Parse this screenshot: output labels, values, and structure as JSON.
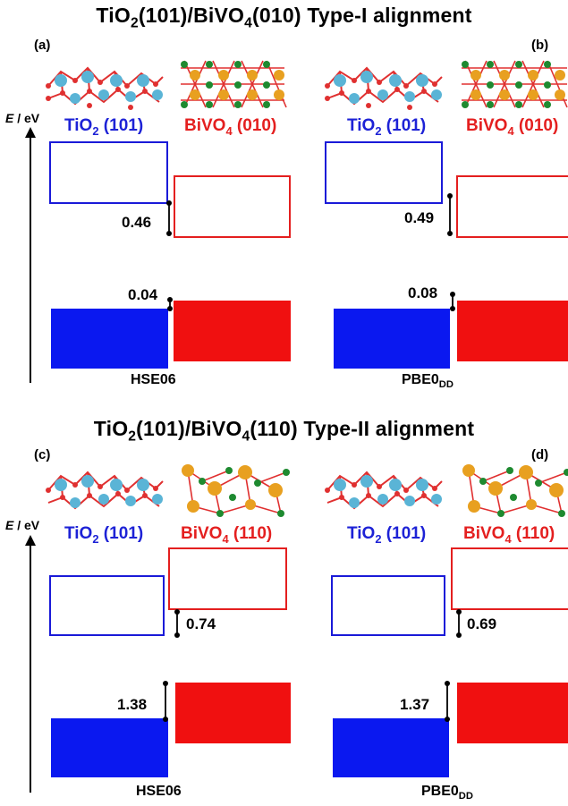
{
  "titles": {
    "top": {
      "prefix": "TiO",
      "sub1": "2",
      "mid": "(101)/BiVO",
      "sub2": "4",
      "suffix": "(010) Type-I alignment"
    },
    "bottom": {
      "prefix": "TiO",
      "sub1": "2",
      "mid": "(101)/BiVO",
      "sub2": "4",
      "suffix": "(110) Type-II alignment"
    }
  },
  "energy_axis_label": {
    "symbol": "E",
    "unit": "/ eV"
  },
  "panels": [
    {
      "id": "(a)",
      "tio2_label": {
        "main": "TiO",
        "sub": "2",
        "rest": " (101)"
      },
      "bivo4_label": {
        "main": "BiVO",
        "sub": "4",
        "rest": " (010)"
      },
      "cb_offset": "0.46",
      "vb_offset": "0.04",
      "method": {
        "main": "HSE06",
        "sub": ""
      }
    },
    {
      "id": "(b)",
      "tio2_label": {
        "main": "TiO",
        "sub": "2",
        "rest": " (101)"
      },
      "bivo4_label": {
        "main": "BiVO",
        "sub": "4",
        "rest": " (010)"
      },
      "cb_offset": "0.49",
      "vb_offset": "0.08",
      "method": {
        "main": "PBE0",
        "sub": "DD"
      }
    },
    {
      "id": "(c)",
      "tio2_label": {
        "main": "TiO",
        "sub": "2",
        "rest": " (101)"
      },
      "bivo4_label": {
        "main": "BiVO",
        "sub": "4",
        "rest": " (110)"
      },
      "cb_offset": "0.74",
      "vb_offset": "1.38",
      "method": {
        "main": "HSE06",
        "sub": ""
      }
    },
    {
      "id": "(d)",
      "tio2_label": {
        "main": "TiO",
        "sub": "2",
        "rest": " (101)"
      },
      "bivo4_label": {
        "main": "BiVO",
        "sub": "4",
        "rest": " (110)"
      },
      "cb_offset": "0.69",
      "vb_offset": "1.37",
      "method": {
        "main": "PBE0",
        "sub": "DD"
      }
    }
  ],
  "colors": {
    "tio2": "#1a1ad8",
    "bivo4": "#e41f1f",
    "ti_atom": "#5ab4d6",
    "o_atom": "#e03030",
    "bi_atom": "#e8a020",
    "v_atom": "#1e8a30"
  }
}
